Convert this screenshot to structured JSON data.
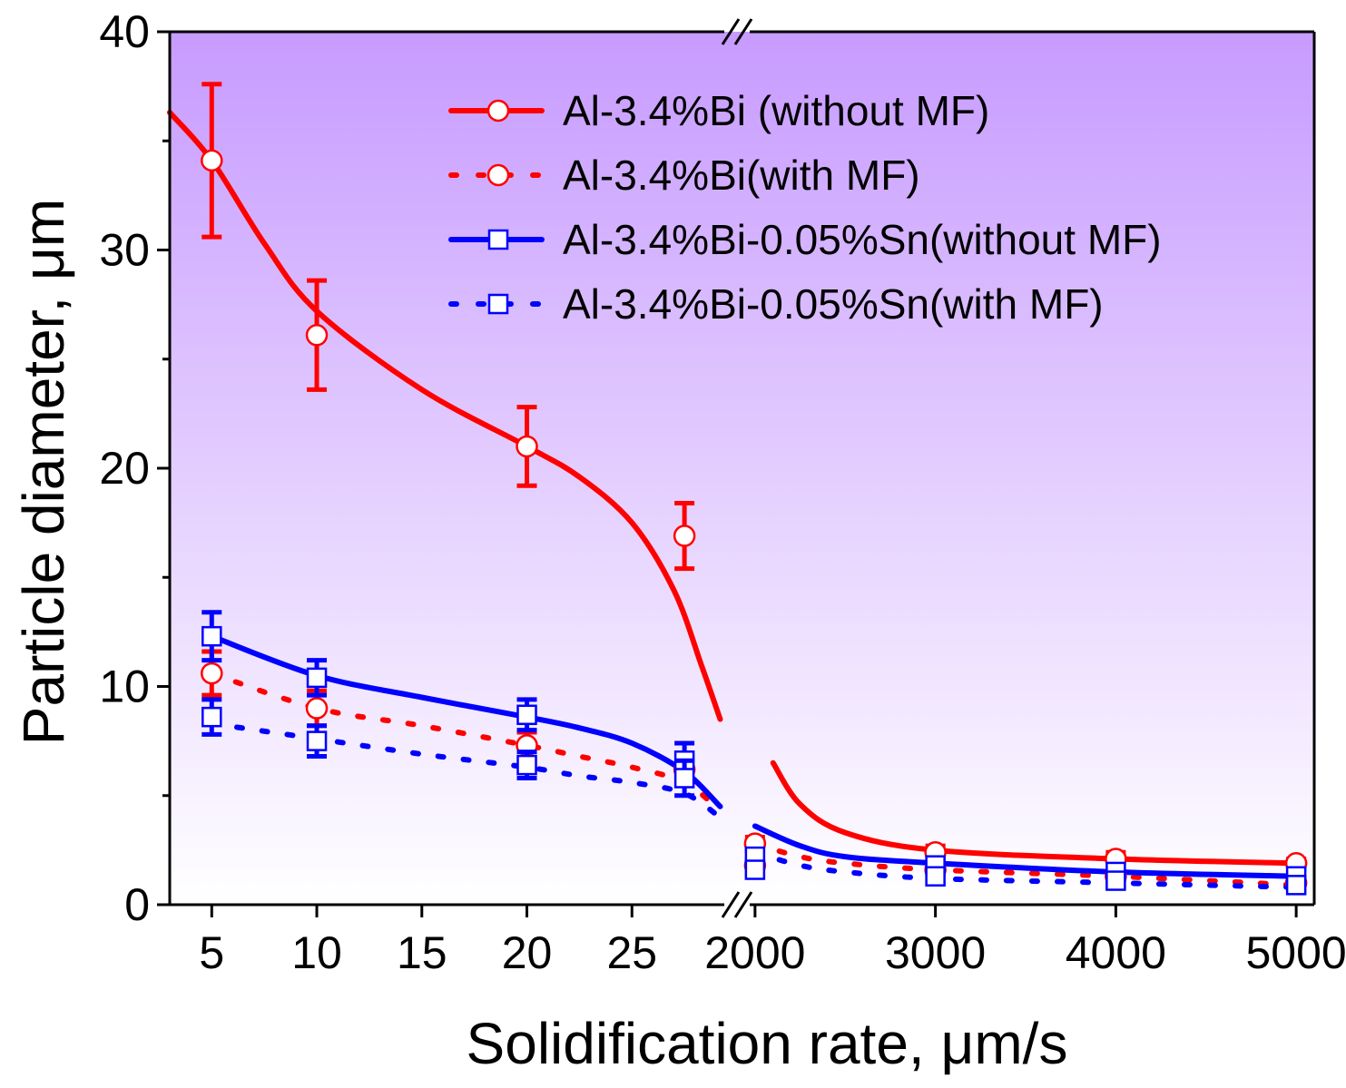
{
  "chart_data": {
    "type": "line",
    "title": "",
    "xlabel": "Solidification rate,  μm/s",
    "ylabel": "Particle diameter,  μm",
    "ylim": [
      0,
      40
    ],
    "yticks": [
      0,
      10,
      20,
      30,
      40
    ],
    "x_axis_break": {
      "left_segment": [
        3,
        30
      ],
      "right_segment": [
        1900,
        5100
      ],
      "break_mark": "//"
    },
    "xticks_left": [
      5,
      10,
      15,
      20,
      25
    ],
    "xticks_right": [
      2000,
      3000,
      4000,
      5000
    ],
    "background_gradient": {
      "top": "#c79bff",
      "bottom": "#ffffff"
    },
    "legend_placement": "top-right",
    "series": [
      {
        "name": "Al-3.4%Bi (without MF)",
        "color": "#ff0000",
        "line": "solid",
        "marker": "circle",
        "x": [
          5,
          10,
          20,
          27.5,
          2000,
          3000,
          4000,
          5000
        ],
        "y": [
          34.1,
          26.1,
          21.0,
          16.9,
          2.8,
          2.4,
          2.1,
          1.9
        ],
        "err": [
          3.5,
          2.5,
          1.8,
          1.5,
          0.3,
          0.3,
          0.3,
          0.2
        ],
        "fit": [
          [
            3.0,
            36.3
          ],
          [
            5,
            34.1
          ],
          [
            7.5,
            30.3
          ],
          [
            10,
            27.2
          ],
          [
            15,
            23.6
          ],
          [
            20,
            21.0
          ],
          [
            22.5,
            19.6
          ],
          [
            25,
            17.5
          ],
          [
            27,
            14.4
          ],
          [
            28.3,
            11.0
          ],
          [
            29.2,
            8.5
          ],
          [
            2100,
            6.5
          ],
          [
            2250,
            4.6
          ],
          [
            2500,
            3.3
          ],
          [
            3000,
            2.5
          ],
          [
            4000,
            2.1
          ],
          [
            5000,
            1.9
          ]
        ]
      },
      {
        "name": "Al-3.4%Bi(with MF)",
        "color": "#ff0000",
        "line": "dotted",
        "marker": "circle",
        "x": [
          5,
          10,
          20,
          27.5,
          2000,
          3000,
          4000,
          5000
        ],
        "y": [
          10.6,
          9.0,
          7.3,
          6.2,
          1.8,
          1.6,
          1.3,
          1.0
        ],
        "err": [
          1.0,
          0.8,
          0.6,
          0.6,
          0.3,
          0.3,
          0.3,
          0.3
        ],
        "fit": [
          [
            5,
            10.6
          ],
          [
            10,
            9.0
          ],
          [
            15,
            8.2
          ],
          [
            20,
            7.3
          ],
          [
            22.5,
            6.8
          ],
          [
            25,
            6.3
          ],
          [
            27.5,
            5.6
          ],
          [
            29.2,
            4.3
          ],
          [
            2000,
            2.8
          ],
          [
            2250,
            2.2
          ],
          [
            2500,
            1.9
          ],
          [
            3000,
            1.6
          ],
          [
            4000,
            1.3
          ],
          [
            5000,
            0.9
          ]
        ]
      },
      {
        "name": "Al-3.4%Bi-0.05%Sn(without MF)",
        "color": "#0000ff",
        "line": "solid",
        "marker": "square",
        "x": [
          5,
          10,
          20,
          27.5,
          2000,
          3000,
          4000,
          5000
        ],
        "y": [
          12.3,
          10.4,
          8.7,
          6.6,
          2.2,
          1.8,
          1.5,
          1.3
        ],
        "err": [
          1.1,
          0.8,
          0.7,
          0.8,
          0.3,
          0.3,
          0.3,
          0.3
        ],
        "fit": [
          [
            5,
            12.3
          ],
          [
            10,
            10.5
          ],
          [
            15,
            9.5
          ],
          [
            20,
            8.6
          ],
          [
            22.5,
            8.1
          ],
          [
            25,
            7.4
          ],
          [
            27.5,
            6.1
          ],
          [
            29.2,
            4.5
          ],
          [
            2000,
            3.6
          ],
          [
            2250,
            2.7
          ],
          [
            2500,
            2.2
          ],
          [
            3000,
            1.9
          ],
          [
            4000,
            1.5
          ],
          [
            5000,
            1.3
          ]
        ]
      },
      {
        "name": "Al-3.4%Bi-0.05%Sn(with MF)",
        "color": "#0000ff",
        "line": "dotted",
        "marker": "square",
        "x": [
          5,
          10,
          20,
          27.5,
          2000,
          3000,
          4000,
          5000
        ],
        "y": [
          8.6,
          7.5,
          6.4,
          5.8,
          1.6,
          1.3,
          1.1,
          0.9
        ],
        "err": [
          0.8,
          0.7,
          0.6,
          0.8,
          0.3,
          0.3,
          0.3,
          0.3
        ],
        "fit": [
          [
            5,
            8.3
          ],
          [
            10,
            7.6
          ],
          [
            15,
            6.9
          ],
          [
            20,
            6.3
          ],
          [
            22.5,
            5.9
          ],
          [
            25,
            5.6
          ],
          [
            27.5,
            5.1
          ],
          [
            29.2,
            4.0
          ],
          [
            2000,
            2.4
          ],
          [
            2250,
            1.8
          ],
          [
            2500,
            1.5
          ],
          [
            3000,
            1.2
          ],
          [
            4000,
            1.0
          ],
          [
            5000,
            0.8
          ]
        ]
      }
    ]
  }
}
